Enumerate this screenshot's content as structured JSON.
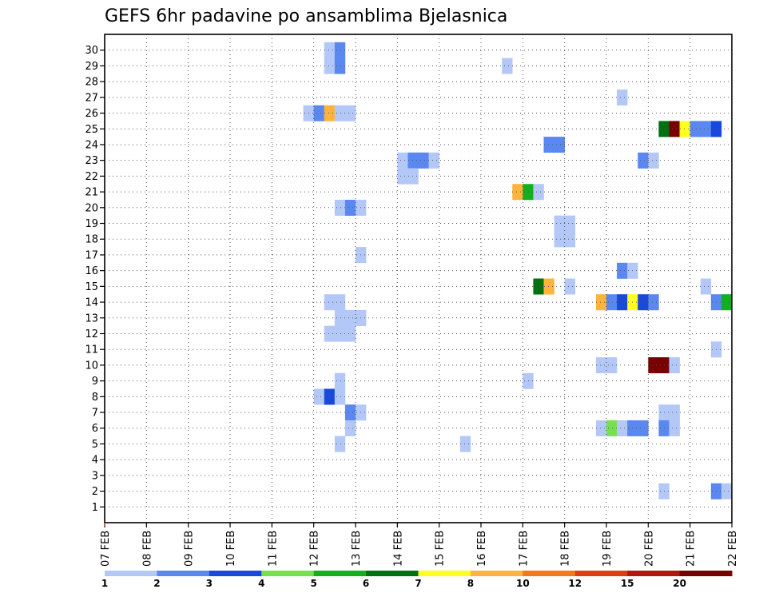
{
  "chart_data": {
    "type": "heatmap",
    "title": "GEFS 6hr padavine po ansamblima Bjelasnica",
    "xlabel": "",
    "ylabel": "",
    "x_tick_labels": [
      "07 FEB",
      "08 FEB",
      "09 FEB",
      "10 FEB",
      "11 FEB",
      "12 FEB",
      "13 FEB",
      "14 FEB",
      "15 FEB",
      "16 FEB",
      "17 FEB",
      "18 FEB",
      "19 FEB",
      "20 FEB",
      "21 FEB",
      "22 FEB"
    ],
    "x_range_days": [
      0,
      15
    ],
    "steps_per_day": 4,
    "y_tick_labels": [
      "1",
      "2",
      "3",
      "4",
      "5",
      "6",
      "7",
      "8",
      "9",
      "10",
      "11",
      "12",
      "13",
      "14",
      "15",
      "16",
      "17",
      "18",
      "19",
      "20",
      "21",
      "22",
      "23",
      "24",
      "25",
      "26",
      "27",
      "28",
      "29",
      "30"
    ],
    "y_range": [
      0,
      31
    ],
    "grid": true,
    "grid_style": "dotted",
    "legend_placement": "bottom",
    "colorbar_labels": [
      "1",
      "2",
      "3",
      "4",
      "5",
      "6",
      "7",
      "8",
      "10",
      "12",
      "15",
      "20"
    ],
    "colorbar_colors": [
      "#b4c8f8",
      "#5a88f0",
      "#1a48dc",
      "#78e050",
      "#10b020",
      "#007010",
      "#ffff20",
      "#fcb43c",
      "#f87818",
      "#e03c14",
      "#b4160e",
      "#780000"
    ],
    "cell_format": "[member, step_index (6h steps from 07 FEB 00z), color_class]",
    "cells": [
      [
        30,
        21,
        0
      ],
      [
        30,
        22,
        1
      ],
      [
        29,
        21,
        0
      ],
      [
        29,
        22,
        1
      ],
      [
        29,
        38,
        0
      ],
      [
        27,
        49,
        0
      ],
      [
        26,
        19,
        0
      ],
      [
        26,
        20,
        1
      ],
      [
        26,
        21,
        7
      ],
      [
        26,
        22,
        0
      ],
      [
        26,
        23,
        0
      ],
      [
        25,
        53,
        5
      ],
      [
        25,
        54,
        11
      ],
      [
        25,
        55,
        6
      ],
      [
        25,
        56,
        1
      ],
      [
        25,
        57,
        1
      ],
      [
        25,
        58,
        2
      ],
      [
        24,
        42,
        1
      ],
      [
        24,
        43,
        1
      ],
      [
        23,
        28,
        0
      ],
      [
        23,
        29,
        1
      ],
      [
        23,
        30,
        1
      ],
      [
        23,
        31,
        0
      ],
      [
        23,
        51,
        1
      ],
      [
        23,
        52,
        0
      ],
      [
        22,
        28,
        0
      ],
      [
        22,
        29,
        0
      ],
      [
        21,
        39,
        7
      ],
      [
        21,
        40,
        4
      ],
      [
        21,
        41,
        0
      ],
      [
        20,
        22,
        0
      ],
      [
        20,
        23,
        1
      ],
      [
        20,
        24,
        0
      ],
      [
        19,
        43,
        0
      ],
      [
        19,
        44,
        0
      ],
      [
        18,
        43,
        0
      ],
      [
        18,
        44,
        0
      ],
      [
        17,
        24,
        0
      ],
      [
        16,
        49,
        1
      ],
      [
        16,
        50,
        0
      ],
      [
        15,
        41,
        5
      ],
      [
        15,
        42,
        7
      ],
      [
        15,
        44,
        0
      ],
      [
        15,
        57,
        0
      ],
      [
        14,
        21,
        0
      ],
      [
        14,
        22,
        0
      ],
      [
        14,
        47,
        7
      ],
      [
        14,
        48,
        1
      ],
      [
        14,
        49,
        2
      ],
      [
        14,
        50,
        6
      ],
      [
        14,
        51,
        2
      ],
      [
        14,
        52,
        1
      ],
      [
        14,
        58,
        1
      ],
      [
        14,
        59,
        4
      ],
      [
        13,
        22,
        0
      ],
      [
        13,
        23,
        0
      ],
      [
        13,
        24,
        0
      ],
      [
        12,
        21,
        0
      ],
      [
        12,
        22,
        0
      ],
      [
        12,
        23,
        0
      ],
      [
        11,
        58,
        0
      ],
      [
        10,
        47,
        0
      ],
      [
        10,
        48,
        0
      ],
      [
        10,
        52,
        11
      ],
      [
        10,
        53,
        11
      ],
      [
        10,
        54,
        0
      ],
      [
        9,
        22,
        0
      ],
      [
        9,
        40,
        0
      ],
      [
        8,
        20,
        0
      ],
      [
        8,
        21,
        2
      ],
      [
        8,
        22,
        0
      ],
      [
        7,
        23,
        1
      ],
      [
        7,
        24,
        0
      ],
      [
        7,
        53,
        0
      ],
      [
        7,
        54,
        0
      ],
      [
        6,
        23,
        0
      ],
      [
        6,
        47,
        0
      ],
      [
        6,
        48,
        3
      ],
      [
        6,
        49,
        0
      ],
      [
        6,
        50,
        1
      ],
      [
        6,
        51,
        1
      ],
      [
        6,
        53,
        1
      ],
      [
        6,
        54,
        0
      ],
      [
        5,
        22,
        0
      ],
      [
        5,
        34,
        0
      ],
      [
        2,
        53,
        0
      ],
      [
        2,
        58,
        1
      ],
      [
        2,
        59,
        0
      ]
    ]
  }
}
